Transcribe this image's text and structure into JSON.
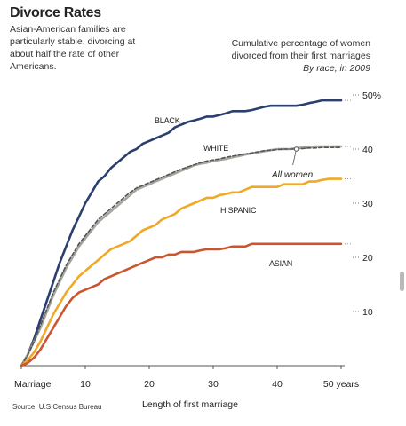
{
  "title": "Divorce Rates",
  "subtitle": "Asian-American families are particularly stable, divorcing at about half the rate of other Americans.",
  "description": {
    "line1": "Cumulative percentage of women",
    "line2": "divorced from their first marriages",
    "line3": "By race, in 2009"
  },
  "source": "Source: U.S Census Bureau",
  "chart_data": {
    "type": "line",
    "xlabel": "Length of first marriage",
    "x_tick_labels": [
      "Marriage",
      "10",
      "20",
      "30",
      "40",
      "50 years"
    ],
    "x_ticks": [
      0,
      10,
      20,
      30,
      40,
      50
    ],
    "y_tick_labels": [
      "10",
      "20",
      "30",
      "40",
      "50%"
    ],
    "y_ticks": [
      10,
      20,
      30,
      40,
      50
    ],
    "xlim": [
      0,
      50
    ],
    "ylim": [
      0,
      52
    ],
    "grid": false,
    "series": [
      {
        "name": "BLACK",
        "color": "#2b3f6e",
        "dash": false,
        "x": [
          0,
          1,
          2,
          3,
          4,
          5,
          6,
          7,
          8,
          9,
          10,
          11,
          12,
          13,
          14,
          15,
          16,
          17,
          18,
          19,
          20,
          21,
          22,
          23,
          24,
          25,
          26,
          27,
          28,
          29,
          30,
          31,
          32,
          33,
          34,
          35,
          36,
          37,
          38,
          39,
          40,
          41,
          42,
          43,
          44,
          45,
          46,
          47,
          48,
          49,
          50
        ],
        "values": [
          0,
          2,
          5,
          8.5,
          12,
          15.5,
          19,
          22,
          25,
          27.5,
          30,
          32,
          34,
          35,
          36.5,
          37.5,
          38.5,
          39.5,
          40,
          41,
          41.5,
          42,
          42.5,
          43,
          44,
          44.5,
          45,
          45.3,
          45.6,
          46,
          46,
          46.3,
          46.6,
          47,
          47,
          47,
          47.2,
          47.5,
          47.8,
          48,
          48,
          48,
          48,
          48,
          48.2,
          48.5,
          48.7,
          49,
          49,
          49,
          49
        ]
      },
      {
        "name": "WHITE",
        "color": "#a6a8a0",
        "dash": false,
        "x": [
          0,
          1,
          2,
          3,
          4,
          5,
          6,
          7,
          8,
          9,
          10,
          11,
          12,
          13,
          14,
          15,
          16,
          17,
          18,
          19,
          20,
          21,
          22,
          23,
          24,
          25,
          26,
          27,
          28,
          29,
          30,
          31,
          32,
          33,
          34,
          35,
          36,
          37,
          38,
          39,
          40,
          41,
          42,
          43,
          44,
          45,
          46,
          47,
          48,
          49,
          50
        ],
        "values": [
          0,
          2,
          4.5,
          7,
          10,
          13,
          15.5,
          18,
          20,
          22,
          23.5,
          25,
          26.5,
          27.5,
          28.5,
          29.5,
          30.5,
          31.5,
          32.5,
          33,
          33.5,
          34,
          34.5,
          35,
          35.5,
          36,
          36.5,
          37,
          37.3,
          37.5,
          37.8,
          38,
          38.2,
          38.5,
          38.7,
          39,
          39.2,
          39.4,
          39.6,
          39.8,
          40,
          40,
          40,
          40.2,
          40.3,
          40.4,
          40.5,
          40.5,
          40.5,
          40.5,
          40.5
        ]
      },
      {
        "name": "All women",
        "color": "#555555",
        "dash": true,
        "x": [
          0,
          1,
          2,
          3,
          4,
          5,
          6,
          7,
          8,
          9,
          10,
          11,
          12,
          13,
          14,
          15,
          16,
          17,
          18,
          19,
          20,
          21,
          22,
          23,
          24,
          25,
          26,
          27,
          28,
          29,
          30,
          31,
          32,
          33,
          34,
          35,
          36,
          37,
          38,
          39,
          40,
          41,
          42,
          43,
          44,
          45,
          46,
          47,
          48,
          49,
          50
        ],
        "values": [
          0,
          2,
          4.5,
          7.5,
          10.5,
          13.5,
          16,
          18.5,
          20.5,
          22.5,
          24,
          25.5,
          27,
          28,
          29,
          30,
          31,
          32,
          32.8,
          33.3,
          33.8,
          34.3,
          34.8,
          35.3,
          35.8,
          36.3,
          36.7,
          37.1,
          37.5,
          37.8,
          38,
          38.2,
          38.5,
          38.7,
          38.9,
          39.1,
          39.3,
          39.5,
          39.7,
          39.8,
          39.9,
          40,
          40,
          40,
          40.1,
          40.2,
          40.2,
          40.3,
          40.3,
          40.3,
          40.3
        ]
      },
      {
        "name": "HISPANIC",
        "color": "#f0a926",
        "dash": false,
        "x": [
          0,
          1,
          2,
          3,
          4,
          5,
          6,
          7,
          8,
          9,
          10,
          11,
          12,
          13,
          14,
          15,
          16,
          17,
          18,
          19,
          20,
          21,
          22,
          23,
          24,
          25,
          26,
          27,
          28,
          29,
          30,
          31,
          32,
          33,
          34,
          35,
          36,
          37,
          38,
          39,
          40,
          41,
          42,
          43,
          44,
          45,
          46,
          47,
          48,
          49,
          50
        ],
        "values": [
          0,
          1,
          2.5,
          4.5,
          7,
          9.5,
          11.5,
          13.5,
          15,
          16.5,
          17.5,
          18.5,
          19.5,
          20.5,
          21.5,
          22,
          22.5,
          23,
          24,
          25,
          25.5,
          26,
          27,
          27.5,
          28,
          29,
          29.5,
          30,
          30.5,
          31,
          31,
          31.5,
          31.7,
          32,
          32,
          32.5,
          33,
          33,
          33,
          33,
          33,
          33.5,
          33.5,
          33.5,
          33.5,
          34,
          34,
          34.3,
          34.5,
          34.5,
          34.5
        ]
      },
      {
        "name": "ASIAN",
        "color": "#c9562e",
        "dash": false,
        "x": [
          0,
          1,
          2,
          3,
          4,
          5,
          6,
          7,
          8,
          9,
          10,
          11,
          12,
          13,
          14,
          15,
          16,
          17,
          18,
          19,
          20,
          21,
          22,
          23,
          24,
          25,
          26,
          27,
          28,
          29,
          30,
          31,
          32,
          33,
          34,
          35,
          36,
          37,
          38,
          39,
          40,
          41,
          42,
          43,
          44,
          45,
          46,
          47,
          48,
          49,
          50
        ],
        "values": [
          0,
          0.5,
          1.5,
          3,
          5,
          7,
          9,
          11,
          12.5,
          13.5,
          14,
          14.5,
          15,
          16,
          16.5,
          17,
          17.5,
          18,
          18.5,
          19,
          19.5,
          20,
          20,
          20.5,
          20.5,
          21,
          21,
          21,
          21.3,
          21.5,
          21.5,
          21.5,
          21.7,
          22,
          22,
          22,
          22.5,
          22.5,
          22.5,
          22.5,
          22.5,
          22.5,
          22.5,
          22.5,
          22.5,
          22.5,
          22.5,
          22.5,
          22.5,
          22.5,
          22.5
        ]
      }
    ]
  }
}
